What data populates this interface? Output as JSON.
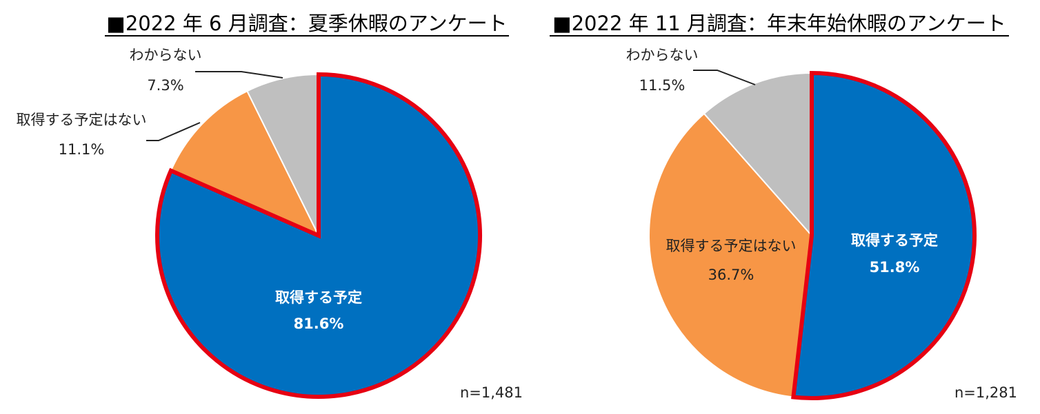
{
  "chart_data": [
    {
      "type": "pie",
      "title": "■2022 年 6 月調査：夏季休暇のアンケート",
      "slices": [
        {
          "label": "取得する予定",
          "value": 81.6,
          "value_label": "81.6%",
          "color": "#0070C0",
          "highlight": true
        },
        {
          "label": "取得する予定はない",
          "value": 11.1,
          "value_label": "11.1%",
          "color": "#F79646",
          "highlight": false
        },
        {
          "label": "わからない",
          "value": 7.3,
          "value_label": "7.3%",
          "color": "#BFBFBF",
          "highlight": false
        }
      ],
      "start": "12 o'clock",
      "direction": "clockwise",
      "highlight_color": "#E60012",
      "sample": "n=1,481"
    },
    {
      "type": "pie",
      "title": "■2022 年 11 月調査：年末年始休暇のアンケート",
      "slices": [
        {
          "label": "取得する予定",
          "value": 51.8,
          "value_label": "51.8%",
          "color": "#0070C0",
          "highlight": true
        },
        {
          "label": "取得する予定はない",
          "value": 36.7,
          "value_label": "36.7%",
          "color": "#F79646",
          "highlight": false
        },
        {
          "label": "わからない",
          "value": 11.5,
          "value_label": "11.5%",
          "color": "#BFBFBF",
          "highlight": false
        }
      ],
      "start": "12 o'clock",
      "direction": "clockwise",
      "highlight_color": "#E60012",
      "sample": "n=1,281"
    }
  ]
}
